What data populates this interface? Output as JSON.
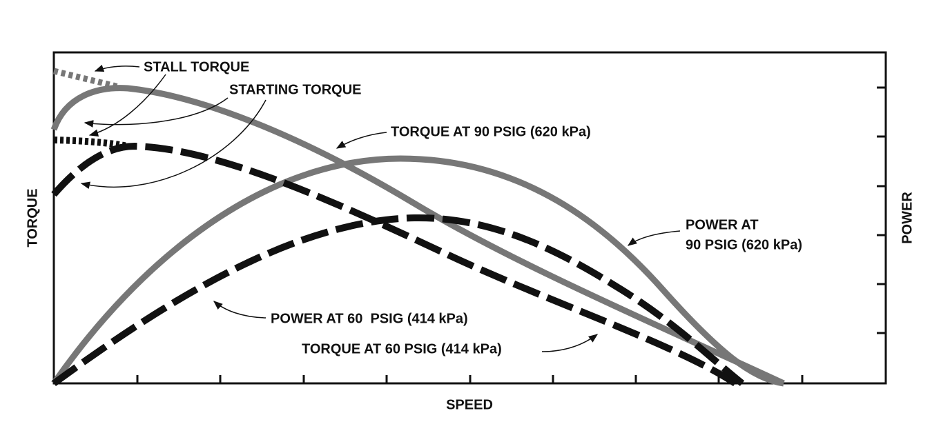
{
  "axes": {
    "x_label": "SPEED",
    "y_label": "TORQUE",
    "y2_label": "POWER"
  },
  "annotations": {
    "stall_torque": "STALL TORQUE",
    "starting_torque": "STARTING TORQUE",
    "torque_90": "TORQUE AT 90 PSIG (620 kPa)",
    "power_90": [
      "POWER AT",
      "90 PSIG (620 kPa)"
    ],
    "power_60": "POWER AT 60  PSIG (414 kPa)",
    "torque_60": "TORQUE AT 60 PSIG (414 kPa)"
  }
}
